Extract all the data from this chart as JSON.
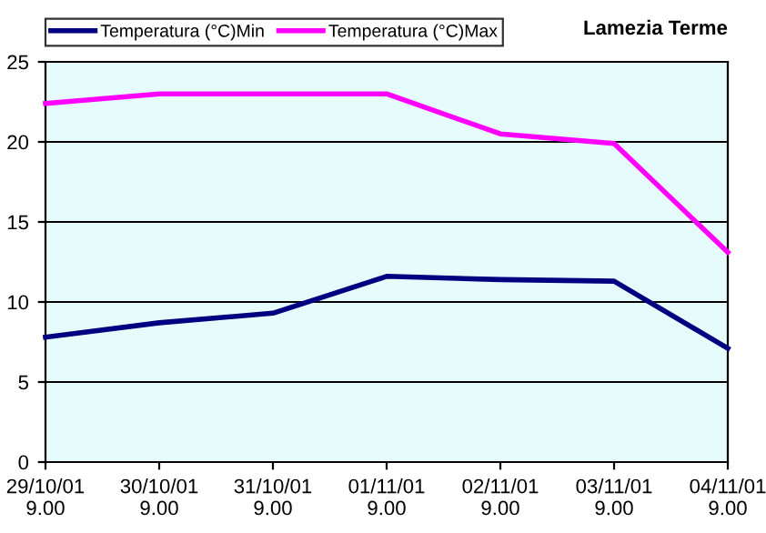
{
  "chart_data": {
    "type": "line",
    "title": "Lamezia Terme",
    "categories": [
      "29/10/01\n9.00",
      "30/10/01\n9.00",
      "31/10/01\n9.00",
      "01/11/01\n9.00",
      "02/11/01\n9.00",
      "03/11/01\n9.00",
      "04/11/01\n9.00"
    ],
    "series": [
      {
        "name": "Temperatura (°C)Min",
        "color": "#000080",
        "values": [
          7.8,
          8.7,
          9.3,
          11.6,
          11.4,
          11.3,
          7.1
        ]
      },
      {
        "name": "Temperatura (°C)Max",
        "color": "#ff00ff",
        "values": [
          22.4,
          23.0,
          23.0,
          23.0,
          20.5,
          19.9,
          13.1
        ]
      }
    ],
    "ylim": [
      0,
      25
    ],
    "yticks": [
      0,
      5,
      10,
      15,
      20,
      25
    ],
    "grid": "y",
    "legend": "top",
    "marker": "none",
    "line_style": "solid"
  }
}
